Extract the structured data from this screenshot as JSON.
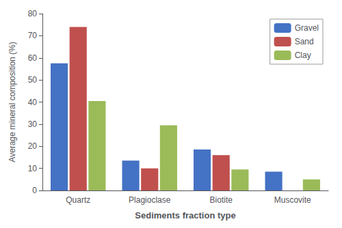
{
  "chart_data": {
    "type": "bar",
    "categories": [
      "Quartz",
      "Plagioclase",
      "Biotite",
      "Muscovite"
    ],
    "series": [
      {
        "name": "Gravel",
        "color": "#4472C4",
        "values": [
          57.5,
          13.5,
          18.5,
          8.5
        ]
      },
      {
        "name": "Sand",
        "color": "#C0504D",
        "values": [
          74.0,
          10.0,
          16.0,
          0.0
        ]
      },
      {
        "name": "Clay",
        "color": "#9BBB59",
        "values": [
          40.5,
          29.5,
          9.5,
          5.0
        ]
      }
    ],
    "xlabel": "Sediments fraction type",
    "ylabel": "Average mineral composition (%)",
    "ylim": [
      0,
      80
    ],
    "yticks": [
      0,
      10,
      20,
      30,
      40,
      50,
      60,
      70,
      80
    ],
    "grid": false,
    "legend": "upper right"
  }
}
